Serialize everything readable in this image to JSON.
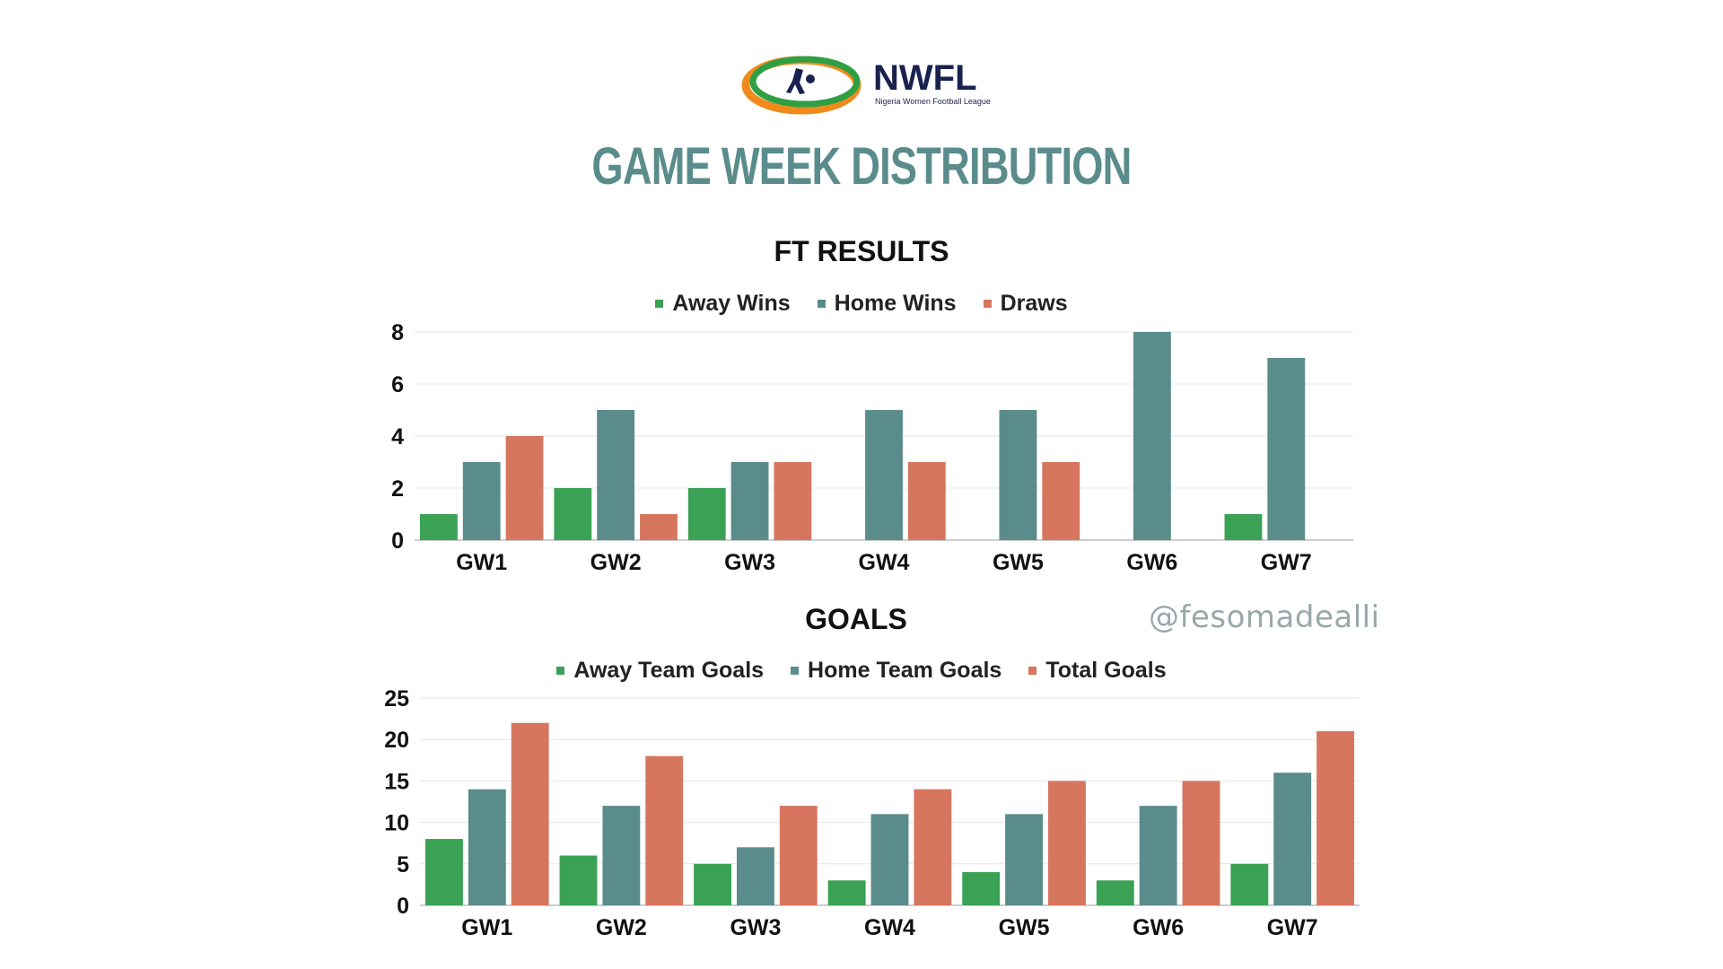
{
  "header": {
    "logo_text": "NWFL",
    "logo_subtitle": "Nigeria Women Football League",
    "title": "GAME WEEK DISTRIBUTION"
  },
  "watermark": "@fesomadealli",
  "colors": {
    "green": "#3aa155",
    "teal": "#5b8c8c",
    "salmon": "#d6765f",
    "title": "#5b8c8c"
  },
  "chart_data": [
    {
      "type": "bar",
      "title": "FT RESULTS",
      "categories": [
        "GW1",
        "GW2",
        "GW3",
        "GW4",
        "GW5",
        "GW6",
        "GW7"
      ],
      "series": [
        {
          "name": "Away Wins",
          "color": "#3aa155",
          "values": [
            1,
            2,
            2,
            0,
            0,
            0,
            1
          ]
        },
        {
          "name": "Home Wins",
          "color": "#5b8c8c",
          "values": [
            3,
            5,
            3,
            5,
            5,
            8,
            7
          ]
        },
        {
          "name": "Draws",
          "color": "#d6765f",
          "values": [
            4,
            1,
            3,
            3,
            3,
            0,
            0
          ]
        }
      ],
      "ylim": [
        0,
        8
      ],
      "yticks": [
        0,
        2,
        4,
        6,
        8
      ],
      "grid": true,
      "legend": "top"
    },
    {
      "type": "bar",
      "title": "GOALS",
      "categories": [
        "GW1",
        "GW2",
        "GW3",
        "GW4",
        "GW5",
        "GW6",
        "GW7"
      ],
      "series": [
        {
          "name": "Away Team Goals",
          "color": "#3aa155",
          "values": [
            8,
            6,
            5,
            3,
            4,
            3,
            5
          ]
        },
        {
          "name": "Home Team Goals",
          "color": "#5b8c8c",
          "values": [
            14,
            12,
            7,
            11,
            11,
            12,
            16
          ]
        },
        {
          "name": "Total Goals",
          "color": "#d6765f",
          "values": [
            22,
            18,
            12,
            14,
            15,
            15,
            21
          ]
        }
      ],
      "ylim": [
        0,
        25
      ],
      "yticks": [
        0,
        5,
        10,
        15,
        20,
        25
      ],
      "grid": true,
      "legend": "top"
    }
  ]
}
